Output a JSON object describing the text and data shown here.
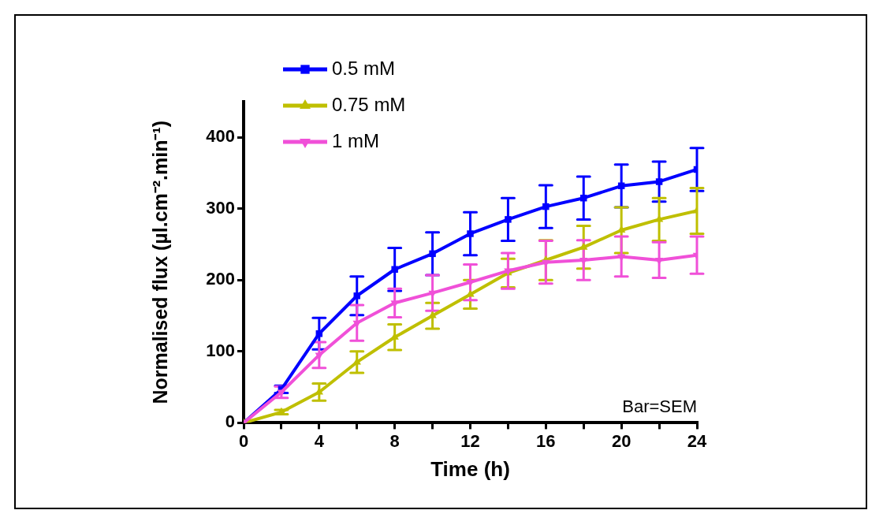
{
  "chart_data": {
    "type": "line",
    "xlabel": "Time (h)",
    "ylabel": "Normalised flux (µl.cm⁻².min⁻¹)",
    "x": [
      0,
      2,
      4,
      6,
      8,
      10,
      12,
      14,
      16,
      18,
      20,
      22,
      24
    ],
    "xlim": [
      0,
      24
    ],
    "xticks": [
      0,
      {
        "value": 2,
        "label": null
      },
      4,
      {
        "value": 6,
        "label": null
      },
      8,
      {
        "value": 10,
        "label": null
      },
      12,
      {
        "value": 14,
        "label": null
      },
      16,
      {
        "value": 18,
        "label": null
      },
      20,
      {
        "value": 22,
        "label": null
      },
      24
    ],
    "ylim": [
      0,
      450
    ],
    "yticks": [
      0,
      100,
      200,
      300,
      400
    ],
    "grid": false,
    "legend": "top left",
    "annotations": [
      "Bar=SEM"
    ],
    "series": [
      {
        "name": "0.5 mM",
        "color": "#0000ff",
        "marker": "square",
        "values": [
          0,
          47,
          125,
          178,
          215,
          237,
          265,
          285,
          303,
          315,
          332,
          338,
          355
        ],
        "errors": [
          null,
          5,
          22,
          27,
          30,
          30,
          30,
          30,
          30,
          30,
          30,
          28,
          30
        ]
      },
      {
        "name": "0.75 mM",
        "color": "#bfbf00",
        "marker": "triangle",
        "values": [
          0,
          15,
          43,
          85,
          120,
          150,
          180,
          210,
          228,
          246,
          270,
          285,
          297
        ],
        "errors": [
          null,
          3,
          12,
          15,
          18,
          18,
          20,
          20,
          28,
          30,
          32,
          30,
          32
        ]
      },
      {
        "name": "1 mM",
        "color": "#f050d8",
        "marker": "triangle-down",
        "values": [
          0,
          43,
          95,
          140,
          168,
          182,
          197,
          213,
          225,
          228,
          233,
          228,
          235
        ],
        "errors": [
          null,
          8,
          18,
          25,
          20,
          25,
          25,
          25,
          30,
          28,
          28,
          25,
          26
        ]
      }
    ]
  }
}
